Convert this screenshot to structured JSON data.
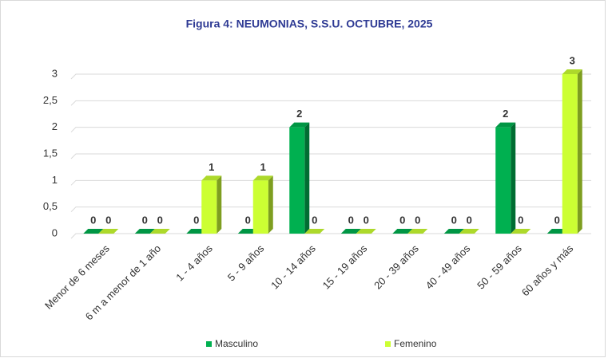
{
  "chart_data": {
    "type": "bar",
    "title": "Figura 4: NEUMONIAS, S.S.U. OCTUBRE, 2025",
    "categories": [
      "Menor de 6 meses",
      "6 m a menor de 1 año",
      "1 - 4 años",
      "5 - 9 años",
      "10 - 14 años",
      "15 - 19 años",
      "20 - 39 años",
      "40 - 49 años",
      "50 - 59 años",
      "60 años y más"
    ],
    "series": [
      {
        "name": "Masculino",
        "color": "#00b050",
        "values": [
          0,
          0,
          0,
          0,
          2,
          0,
          0,
          0,
          2,
          0
        ]
      },
      {
        "name": "Femenino",
        "color": "#ccff33",
        "values": [
          0,
          0,
          1,
          1,
          0,
          0,
          0,
          0,
          0,
          3
        ]
      }
    ],
    "ylim": [
      0,
      3
    ],
    "yticks": [
      0,
      {
        "value": 0.5,
        "label": "0,5"
      },
      1,
      {
        "value": 1.5,
        "label": "1,5"
      },
      2,
      {
        "value": 2.5,
        "label": "2,5"
      },
      3
    ],
    "grid": true,
    "legend": "bottom"
  }
}
